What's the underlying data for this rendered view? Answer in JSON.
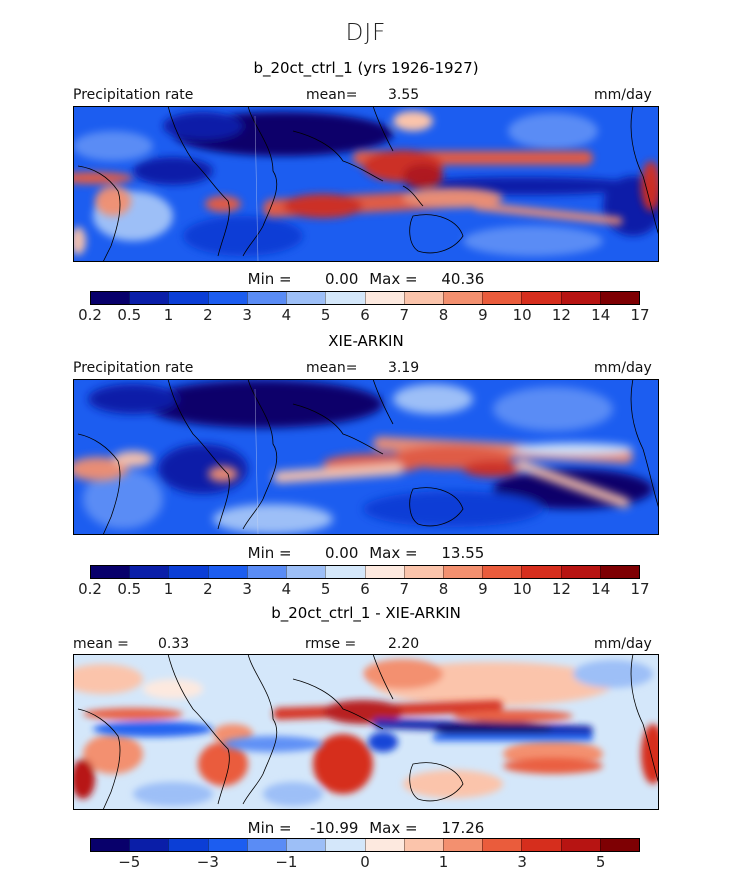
{
  "figure": {
    "season": "DJF",
    "panels": [
      {
        "title": "b_20ct_ctrl_1 (yrs 1926-1927)",
        "left_label": "Precipitation rate",
        "mid_label": "mean=",
        "mid_value": "3.55",
        "right_label": "mm/day",
        "min_label": "Min =",
        "min_value": "0.00",
        "max_label": "Max =",
        "max_value": "40.36"
      },
      {
        "title": "XIE-ARKIN",
        "left_label": "Precipitation rate",
        "mid_label": "mean=",
        "mid_value": "3.19",
        "right_label": "mm/day",
        "min_label": "Min =",
        "min_value": "0.00",
        "max_label": "Max =",
        "max_value": "13.55"
      },
      {
        "title": "b_20ct_ctrl_1 - XIE-ARKIN",
        "left_label": "mean =",
        "left_value": "0.33",
        "mid_label": "rmse =",
        "mid_value": "2.20",
        "right_label": "mm/day",
        "min_label": "Min =",
        "min_value": "-10.99",
        "max_label": "Max =",
        "max_value": "17.26"
      }
    ]
  },
  "colorscale": [
    "#08006b",
    "#0a1ea8",
    "#0b3ed6",
    "#1c5df0",
    "#5a8cf5",
    "#9dbff7",
    "#d4e7fa",
    "#fde9df",
    "#fbc4ab",
    "#f3906f",
    "#ea5c3c",
    "#d62e1d",
    "#b71412",
    "#7e0003"
  ],
  "chart_data": [
    {
      "type": "heatmap",
      "title": "b_20ct_ctrl_1 (yrs 1926-1927)",
      "variable": "Precipitation rate",
      "units": "mm/day",
      "mean": 3.55,
      "min": 0.0,
      "max": 40.36,
      "contour_levels": [
        0.2,
        0.5,
        1,
        2,
        3,
        4,
        5,
        6,
        7,
        8,
        9,
        10,
        12,
        14,
        17
      ],
      "colorbar_labels": [
        "0.2",
        "0.5",
        "1",
        "2",
        "3",
        "4",
        "5",
        "6",
        "7",
        "8",
        "9",
        "10",
        "12",
        "14",
        "17"
      ]
    },
    {
      "type": "heatmap",
      "title": "XIE-ARKIN",
      "variable": "Precipitation rate",
      "units": "mm/day",
      "mean": 3.19,
      "min": 0.0,
      "max": 13.55,
      "contour_levels": [
        0.2,
        0.5,
        1,
        2,
        3,
        4,
        5,
        6,
        7,
        8,
        9,
        10,
        12,
        14,
        17
      ],
      "colorbar_labels": [
        "0.2",
        "0.5",
        "1",
        "2",
        "3",
        "4",
        "5",
        "6",
        "7",
        "8",
        "9",
        "10",
        "12",
        "14",
        "17"
      ]
    },
    {
      "type": "heatmap",
      "title": "b_20ct_ctrl_1 - XIE-ARKIN",
      "units": "mm/day",
      "mean": 0.33,
      "rmse": 2.2,
      "min": -10.99,
      "max": 17.26,
      "contour_levels": [
        -7,
        -5,
        -4,
        -3,
        -2,
        -1,
        -0.5,
        0,
        0.5,
        1,
        2,
        3,
        4,
        5,
        7
      ],
      "colorbar_labels": [
        "−5",
        "−3",
        "−1",
        "0",
        "1",
        "3",
        "5"
      ]
    }
  ]
}
